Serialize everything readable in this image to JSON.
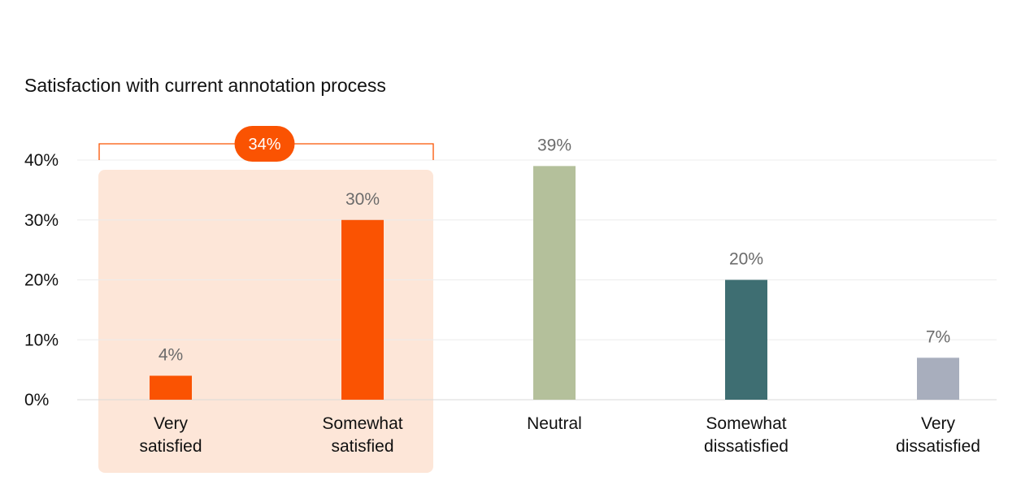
{
  "chart_data": {
    "type": "bar",
    "title": "Satisfaction with current annotation process",
    "categories": [
      [
        "Very",
        "satisfied"
      ],
      [
        "Somewhat",
        "satisfied"
      ],
      [
        "Neutral"
      ],
      [
        "Somewhat",
        "dissatisfied"
      ],
      [
        "Very",
        "dissatisfied"
      ]
    ],
    "values": [
      4,
      30,
      39,
      20,
      7
    ],
    "value_labels": [
      "4%",
      "30%",
      "39%",
      "20%",
      "7%"
    ],
    "colors": [
      "#fa5302",
      "#fa5302",
      "#b4c09b",
      "#3e6e72",
      "#a8aebd"
    ],
    "ylim": [
      0,
      40
    ],
    "yticks": [
      "0%",
      "10%",
      "20%",
      "30%",
      "40%"
    ],
    "grid": true,
    "highlight": {
      "categories": [
        0,
        1
      ],
      "label": "34%",
      "color": "#fa5302",
      "fill": "#fde6d8"
    }
  }
}
